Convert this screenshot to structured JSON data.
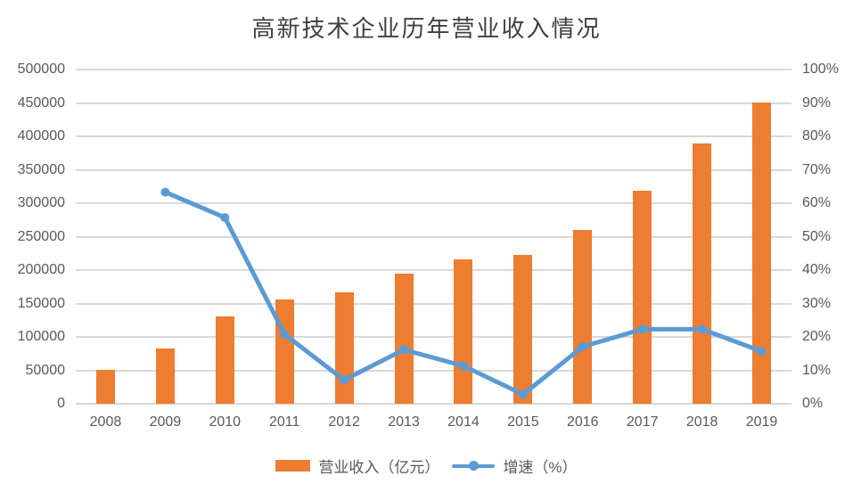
{
  "title": "高新技术企业历年营业收入情况",
  "colors": {
    "bar": "#ED7D31",
    "line": "#5B9BD5",
    "grid": "#D9D9D9",
    "tick_text": "#595959",
    "title_text": "#404040",
    "background": "#FFFFFF"
  },
  "legend": {
    "revenue_label": "营业收入（亿元）",
    "growth_label": "增速（%）"
  },
  "left_axis": {
    "min": 0,
    "max": 500000,
    "step": 50000,
    "ticks_top_to_bottom": [
      "500000",
      "450000",
      "400000",
      "350000",
      "300000",
      "250000",
      "200000",
      "150000",
      "100000",
      "50000",
      "0"
    ]
  },
  "right_axis": {
    "min": 0,
    "max": 100,
    "step": 10,
    "ticks_top_to_bottom": [
      "100%",
      "90%",
      "80%",
      "70%",
      "60%",
      "50%",
      "40%",
      "30%",
      "20%",
      "10%",
      "0%"
    ]
  },
  "chart_data": {
    "type": "bar",
    "title": "高新技术企业历年营业收入情况",
    "categories": [
      "2008",
      "2009",
      "2010",
      "2011",
      "2012",
      "2013",
      "2014",
      "2015",
      "2016",
      "2017",
      "2018",
      "2019"
    ],
    "series": [
      {
        "name": "营业收入（亿元）",
        "type": "bar",
        "axis": "left",
        "values": [
          51000,
          83000,
          130000,
          156000,
          167000,
          194000,
          216000,
          222000,
          260000,
          318000,
          389000,
          450000
        ]
      },
      {
        "name": "增速（%）",
        "type": "line",
        "axis": "right",
        "values": [
          null,
          63.3,
          55.7,
          20.8,
          7.1,
          16.2,
          11.3,
          2.8,
          17.1,
          22.3,
          22.3,
          15.7
        ]
      }
    ],
    "xlabel": "",
    "ylabel_left": "营业收入（亿元）",
    "ylabel_right": "增速（%）",
    "ylim_left": [
      0,
      500000
    ],
    "ylim_right": [
      0,
      100
    ],
    "grid": "horizontal",
    "legend_position": "bottom"
  }
}
